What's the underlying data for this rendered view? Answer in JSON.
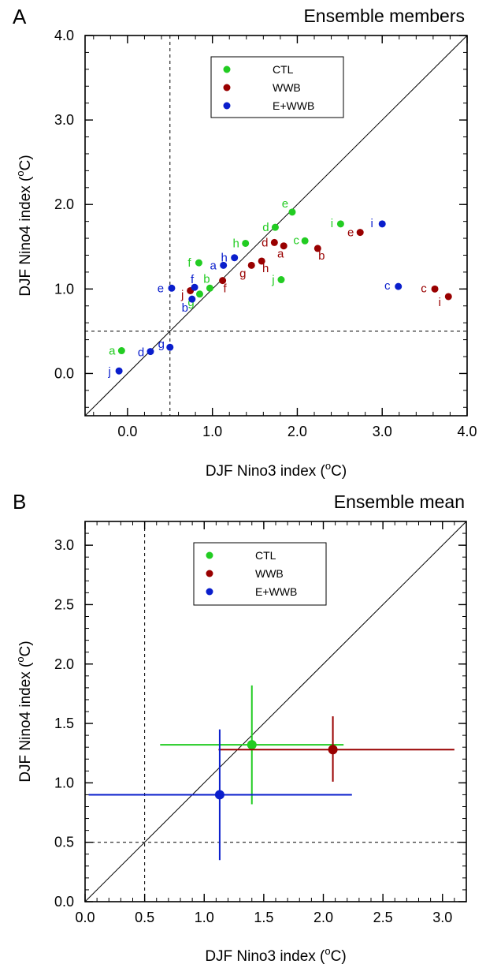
{
  "colors": {
    "CTL": "#22cc22",
    "WWB": "#990000",
    "E+WWB": "#0a1ecc"
  },
  "chart_data": [
    {
      "type": "scatter",
      "panel_letter": "A",
      "title": "Ensemble members",
      "xlabel": "DJF Nino3 index (",
      "ylabel": "DJF Nino4 index (",
      "unit": "oC",
      "unit_suffix": ")",
      "xlim": [
        -0.5,
        4.0
      ],
      "ylim": [
        -0.5,
        4.0
      ],
      "xticks": [
        "0.0",
        "1.0",
        "2.0",
        "3.0",
        "4.0"
      ],
      "xtick_values": [
        0,
        1,
        2,
        3,
        4
      ],
      "yticks": [
        "0.0",
        "1.0",
        "2.0",
        "3.0",
        "4.0"
      ],
      "ytick_values": [
        0,
        1,
        2,
        3,
        4
      ],
      "minor_step": 0.2,
      "threshold": 0.5,
      "legend": [
        "CTL",
        "WWB",
        "E+WWB"
      ],
      "legend_position": "top-center",
      "series": [
        {
          "name": "CTL",
          "points": [
            {
              "label": "a",
              "x": -0.07,
              "y": 0.27
            },
            {
              "label": "b",
              "x": 0.97,
              "y": 1.01
            },
            {
              "label": "c",
              "x": 2.09,
              "y": 1.57
            },
            {
              "label": "d",
              "x": 1.74,
              "y": 1.73
            },
            {
              "label": "e",
              "x": 1.94,
              "y": 1.91
            },
            {
              "label": "f",
              "x": 0.84,
              "y": 1.31
            },
            {
              "label": "g",
              "x": 0.85,
              "y": 0.94
            },
            {
              "label": "h",
              "x": 1.39,
              "y": 1.54
            },
            {
              "label": "i",
              "x": 2.51,
              "y": 1.77
            },
            {
              "label": "j",
              "x": 1.81,
              "y": 1.11
            }
          ]
        },
        {
          "name": "WWB",
          "points": [
            {
              "label": "a",
              "x": 1.84,
              "y": 1.51
            },
            {
              "label": "b",
              "x": 2.24,
              "y": 1.48
            },
            {
              "label": "c",
              "x": 3.62,
              "y": 1.0
            },
            {
              "label": "d",
              "x": 1.73,
              "y": 1.55
            },
            {
              "label": "e",
              "x": 2.74,
              "y": 1.67
            },
            {
              "label": "f",
              "x": 1.12,
              "y": 1.1
            },
            {
              "label": "g",
              "x": 1.46,
              "y": 1.28
            },
            {
              "label": "h",
              "x": 1.58,
              "y": 1.33
            },
            {
              "label": "i",
              "x": 3.78,
              "y": 0.91
            },
            {
              "label": "j",
              "x": 0.74,
              "y": 0.98
            }
          ]
        },
        {
          "name": "E+WWB",
          "points": [
            {
              "label": "a",
              "x": 1.13,
              "y": 1.28
            },
            {
              "label": "b",
              "x": 0.76,
              "y": 0.88
            },
            {
              "label": "c",
              "x": 3.19,
              "y": 1.03
            },
            {
              "label": "d",
              "x": 0.27,
              "y": 0.26
            },
            {
              "label": "e",
              "x": 0.52,
              "y": 1.01
            },
            {
              "label": "f",
              "x": 0.79,
              "y": 1.02
            },
            {
              "label": "g",
              "x": 0.5,
              "y": 0.31
            },
            {
              "label": "h",
              "x": 1.26,
              "y": 1.37
            },
            {
              "label": "i",
              "x": 3.0,
              "y": 1.77
            },
            {
              "label": "j",
              "x": -0.1,
              "y": 0.03
            }
          ]
        }
      ]
    },
    {
      "type": "scatter",
      "panel_letter": "B",
      "title": "Ensemble mean",
      "xlabel": "DJF Nino3 index (",
      "ylabel": "DJF Nino4 index (",
      "unit": "oC",
      "unit_suffix": ")",
      "xlim": [
        0.0,
        3.2
      ],
      "ylim": [
        0.0,
        3.2
      ],
      "xticks": [
        "0.0",
        "0.5",
        "1.0",
        "1.5",
        "2.0",
        "2.5",
        "3.0"
      ],
      "xtick_values": [
        0,
        0.5,
        1.0,
        1.5,
        2.0,
        2.5,
        3.0
      ],
      "yticks": [
        "0.0",
        "0.5",
        "1.0",
        "1.5",
        "2.0",
        "2.5",
        "3.0"
      ],
      "ytick_values": [
        0,
        0.5,
        1.0,
        1.5,
        2.0,
        2.5,
        3.0
      ],
      "minor_step": 0.1,
      "threshold": 0.5,
      "legend": [
        "CTL",
        "WWB",
        "E+WWB"
      ],
      "legend_position": "top-center",
      "series": [
        {
          "name": "CTL",
          "x": 1.4,
          "y": 1.32,
          "x_range": [
            0.63,
            2.17
          ],
          "y_range": [
            0.82,
            1.82
          ]
        },
        {
          "name": "WWB",
          "x": 2.08,
          "y": 1.28,
          "x_range": [
            1.12,
            3.1
          ],
          "y_range": [
            1.01,
            1.56
          ]
        },
        {
          "name": "E+WWB",
          "x": 1.13,
          "y": 0.9,
          "x_range": [
            0.03,
            2.24
          ],
          "y_range": [
            0.35,
            1.45
          ]
        }
      ]
    }
  ]
}
